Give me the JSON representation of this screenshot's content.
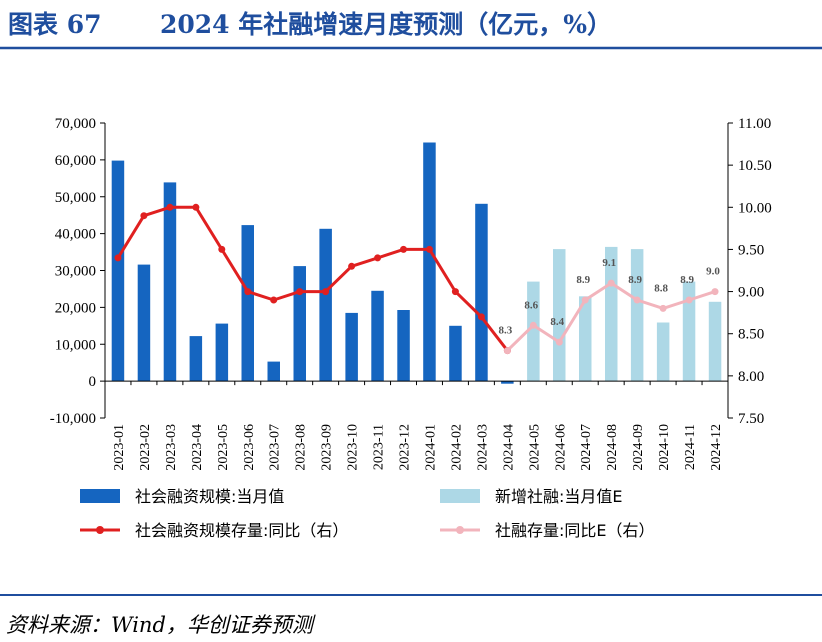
{
  "header": {
    "figure_label": "图表 67",
    "title": "2024 年社融增速月度预测（亿元，%）"
  },
  "footer": {
    "source": "资料来源：Wind，华创证券预测"
  },
  "colors": {
    "title": "#1f4e9e",
    "rule": "#1f4e9e",
    "bar_actual": "#1565c0",
    "bar_forecast": "#add8e6",
    "line_actual": "#e02020",
    "line_forecast": "#f2b4bc"
  },
  "chart_data": {
    "type": "bar",
    "categories": [
      "2023-01",
      "2023-02",
      "2023-03",
      "2023-04",
      "2023-05",
      "2023-06",
      "2023-07",
      "2023-08",
      "2023-09",
      "2023-10",
      "2023-11",
      "2023-12",
      "2024-01",
      "2024-02",
      "2024-03",
      "2024-04",
      "2024-05",
      "2024-06",
      "2024-07",
      "2024-08",
      "2024-09",
      "2024-10",
      "2024-11",
      "2024-12"
    ],
    "left_axis": {
      "ylim": [
        -10000,
        70000
      ],
      "ticks": [
        -10000,
        0,
        10000,
        20000,
        30000,
        40000,
        50000,
        60000,
        70000
      ],
      "tick_labels": [
        "-10,000",
        "0",
        "10,000",
        "20,000",
        "30,000",
        "40,000",
        "50,000",
        "60,000",
        "70,000"
      ]
    },
    "right_axis": {
      "ylim": [
        7.5,
        11.0
      ],
      "ticks": [
        7.5,
        8.0,
        8.5,
        9.0,
        9.5,
        10.0,
        10.5,
        11.0
      ],
      "tick_labels": [
        "7.50",
        "8.00",
        "8.50",
        "9.00",
        "9.50",
        "10.00",
        "10.50",
        "11.00"
      ]
    },
    "grid": false,
    "legend_position": "bottom",
    "series": [
      {
        "name": "社会融资规模:当月值",
        "kind": "bar",
        "axis": "left",
        "values": [
          59800,
          31600,
          53900,
          12200,
          15600,
          42300,
          5300,
          31200,
          41300,
          18500,
          24500,
          19300,
          64700,
          15000,
          48100,
          -700,
          null,
          null,
          null,
          null,
          null,
          null,
          null,
          null
        ]
      },
      {
        "name": "新增社融:当月值E",
        "kind": "bar",
        "axis": "left",
        "values": [
          null,
          null,
          null,
          null,
          null,
          null,
          null,
          null,
          null,
          null,
          null,
          null,
          null,
          null,
          null,
          null,
          27000,
          35800,
          23000,
          36400,
          35800,
          15900,
          27000,
          21500
        ]
      },
      {
        "name": "社会融资规模存量:同比（右）",
        "kind": "line",
        "axis": "right",
        "values": [
          9.4,
          9.9,
          10.0,
          10.0,
          9.5,
          9.0,
          8.9,
          9.0,
          9.0,
          9.3,
          9.4,
          9.5,
          9.5,
          9.0,
          8.7,
          8.3,
          null,
          null,
          null,
          null,
          null,
          null,
          null,
          null
        ]
      },
      {
        "name": "社融存量:同比E（右）",
        "kind": "line",
        "axis": "right",
        "values": [
          null,
          null,
          null,
          null,
          null,
          null,
          null,
          null,
          null,
          null,
          null,
          null,
          null,
          null,
          null,
          8.3,
          8.6,
          8.4,
          8.9,
          9.1,
          8.9,
          8.8,
          8.9,
          9.0
        ],
        "labels": [
          "",
          "",
          "",
          "",
          "",
          "",
          "",
          "",
          "",
          "",
          "",
          "",
          "",
          "",
          "",
          "8.3",
          "8.6",
          "8.4",
          "8.9",
          "9.1",
          "8.9",
          "8.8",
          "8.9",
          "9.0"
        ]
      }
    ]
  }
}
